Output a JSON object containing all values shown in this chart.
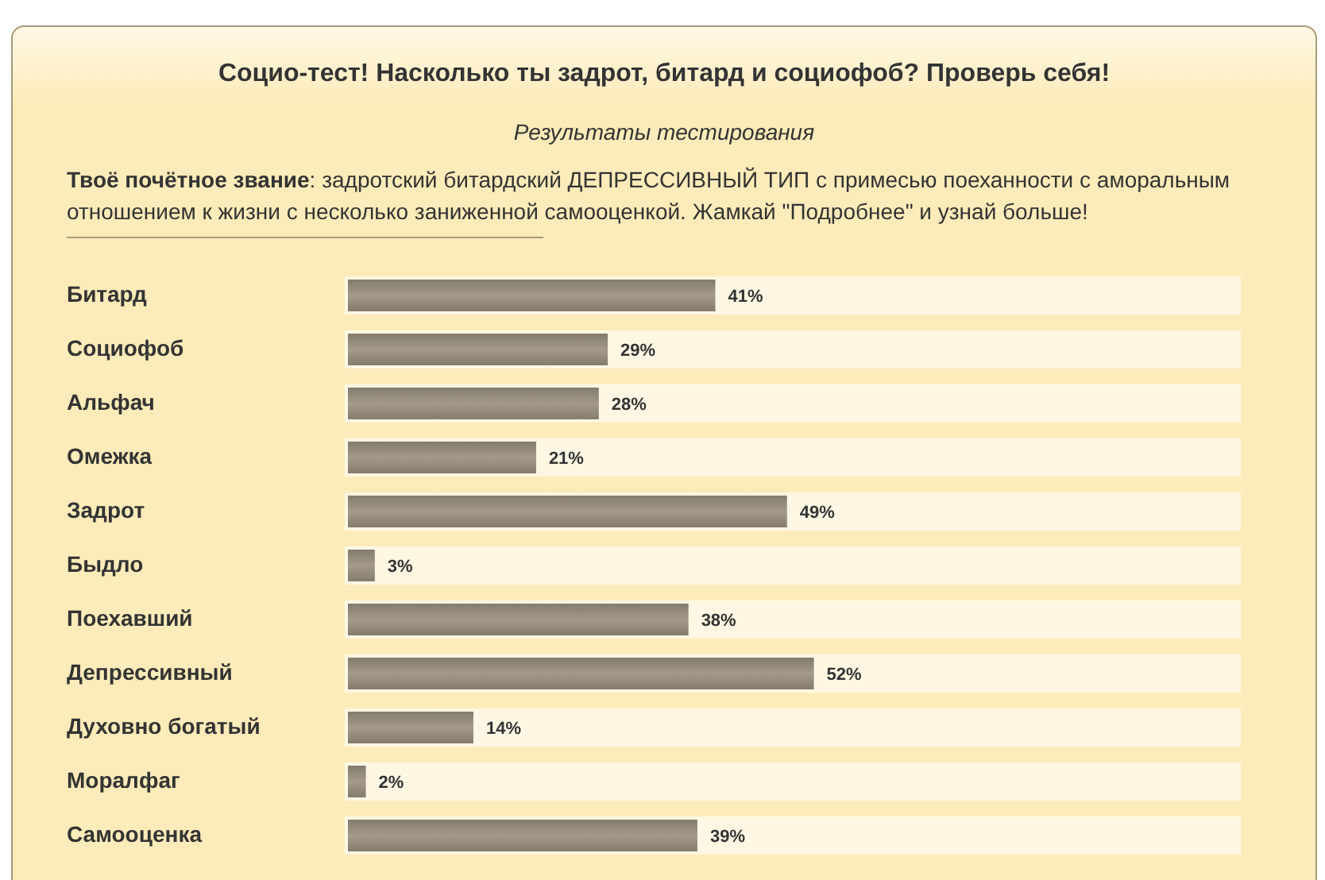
{
  "chart_data": {
    "type": "bar",
    "orientation": "horizontal",
    "title": "Социо-тест! Насколько ты задрот, битард и социофоб? Проверь себя!",
    "subtitle": "Результаты тестирования",
    "annotations": [
      "Твоё почётное звание: задротский битардский ДЕПРЕССИВНЫЙ ТИП с примесью поеханности с аморальным отношением к жизни с несколько заниженной самооценкой. Жамкай \"Подробнее\" и узнай больше!"
    ],
    "categories": [
      "Битард",
      "Социофоб",
      "Альфач",
      "Омежка",
      "Задрот",
      "Быдло",
      "Поехавший",
      "Депрессивный",
      "Духовно богатый",
      "Моралфаг",
      "Самооценка"
    ],
    "values": [
      41,
      29,
      28,
      21,
      49,
      3,
      38,
      52,
      14,
      2,
      39
    ],
    "value_labels": [
      "41%",
      "29%",
      "28%",
      "21%",
      "49%",
      "3%",
      "38%",
      "52%",
      "14%",
      "2%",
      "39%"
    ],
    "color": "#968c7b",
    "xlim": [
      0,
      100
    ]
  }
}
